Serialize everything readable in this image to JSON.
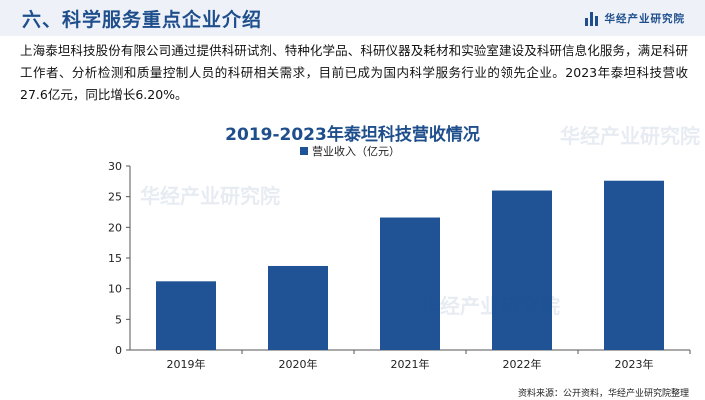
{
  "header": {
    "title": "六、科学服务重点企业介绍",
    "brand": "华经产业研究院"
  },
  "intro": "上海泰坦科技股份有限公司通过提供科研试剂、特种化学品、科研仪器及耗材和实验室建设及科研信息化服务，满足科研工作者、分析检测和质量控制人员的科研相关需求，目前已成为国内科学服务行业的领先企业。2023年泰坦科技营收27.6亿元，同比增长6.20%。",
  "chart_data": {
    "type": "bar",
    "title": "2019-2023年泰坦科技营收情况",
    "categories": [
      "2019年",
      "2020年",
      "2021年",
      "2022年",
      "2023年"
    ],
    "series": [
      {
        "name": "营业收入（亿元）",
        "values": [
          11.2,
          13.7,
          21.6,
          26.0,
          27.6
        ]
      }
    ],
    "ylim": [
      0,
      30
    ],
    "yticks": [
      "0",
      "5",
      "10",
      "15",
      "20",
      "25",
      "30"
    ],
    "xlabel": "",
    "ylabel": "",
    "grid": false,
    "legend": "top-center",
    "bar_color": "#1f5396"
  },
  "footer": {
    "source": "资料来源：公开资料，华经产业研究院整理"
  },
  "colors": {
    "accent": "#1f4e8c",
    "header_bg": "#eef2f8"
  }
}
